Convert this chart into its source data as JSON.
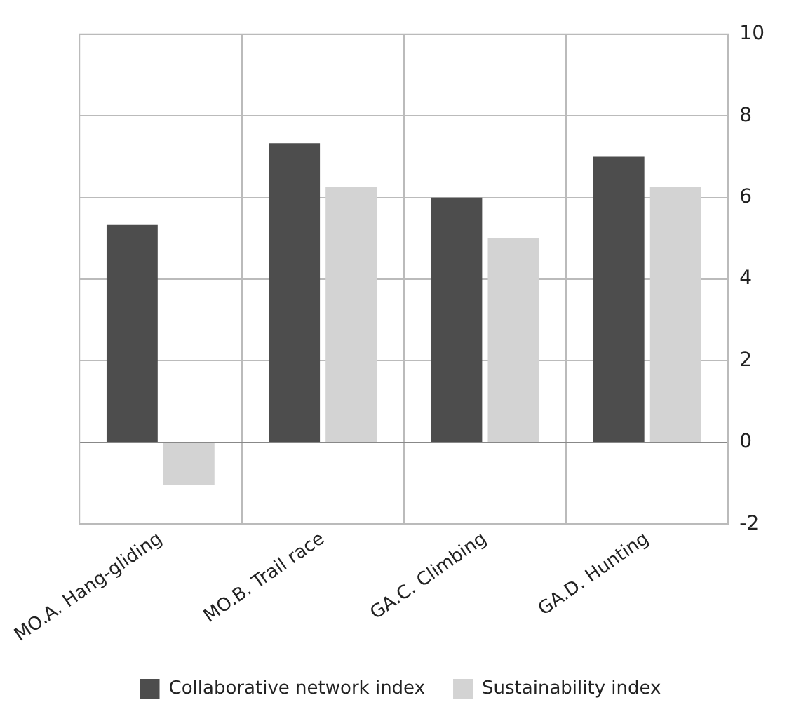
{
  "chart_data": {
    "type": "bar",
    "categories": [
      "MO.A. Hang-gliding",
      "MO.B. Trail race",
      "GA.C. Climbing",
      "GA.D. Hunting"
    ],
    "series": [
      {
        "name": "Collaborative network index",
        "color": "#4d4d4d",
        "values": [
          5.33,
          7.33,
          6,
          7
        ]
      },
      {
        "name": "Sustainability index",
        "color": "#d3d3d3",
        "values": [
          -1.05,
          6.25,
          5,
          6.25
        ]
      }
    ],
    "ylim": [
      -2,
      10
    ],
    "yticks": [
      -2,
      0,
      2,
      4,
      6,
      8,
      10
    ],
    "grid": true,
    "legend": "bottom"
  }
}
